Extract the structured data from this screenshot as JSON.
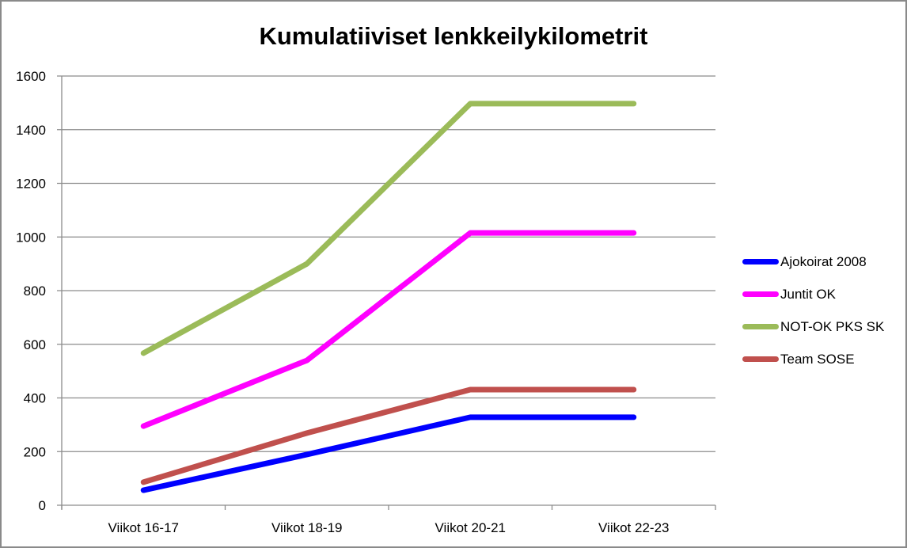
{
  "chart_data": {
    "type": "line",
    "title": "Kumulatiiviset lenkkeilykilometrit",
    "xlabel": "",
    "ylabel": "",
    "categories": [
      "Viikot 16-17",
      "Viikot 18-19",
      "Viikot 20-21",
      "Viikot 22-23"
    ],
    "ylim": [
      0,
      1600
    ],
    "yticks": [
      0,
      200,
      400,
      600,
      800,
      1000,
      1200,
      1400,
      1600
    ],
    "grid": true,
    "legend_position": "right",
    "series": [
      {
        "name": "Ajokoirat 2008",
        "color": "#0000ff",
        "values": [
          56,
          189,
          328,
          328
        ]
      },
      {
        "name": "Juntit OK",
        "color": "#ff00ff",
        "values": [
          295,
          540,
          1015,
          1015
        ]
      },
      {
        "name": "NOT-OK PKS SK",
        "color": "#9bbb59",
        "values": [
          567,
          900,
          1497,
          1497
        ]
      },
      {
        "name": "Team SOSE",
        "color": "#c0504d",
        "values": [
          86,
          269,
          431,
          431
        ]
      }
    ]
  }
}
